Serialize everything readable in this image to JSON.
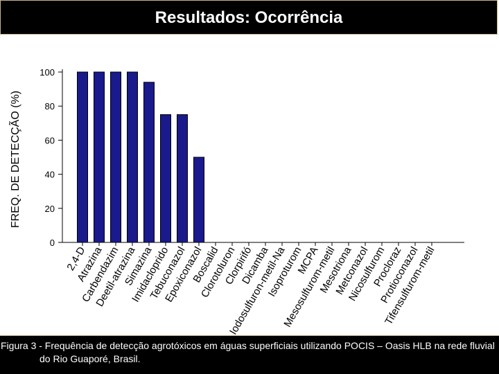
{
  "slide": {
    "title": "Resultados: Ocorrência",
    "caption": "Figura 3 - Frequência de detecção agrotóxicos em águas superficiais utilizando POCIS – Oasis HLB na rede fluvial do Rio Guaporé, Brasil."
  },
  "chart_data": {
    "type": "bar",
    "title": "",
    "xlabel": "",
    "ylabel": "FREQ. DE DETECÇÃO (%)",
    "ylim": [
      0,
      100
    ],
    "yticks": [
      0,
      20,
      40,
      60,
      80,
      100
    ],
    "grid": false,
    "bar_color": "#1a1a8c",
    "categories": [
      "2,4-D",
      "Atrazina",
      "Carbendazim",
      "Deetil-atrazina",
      "Simazina",
      "Imidacloprido",
      "Tebuconazol",
      "Epoxiconazol",
      "Boscalid",
      "Clorotoluron",
      "Clorpirifó",
      "Dicamba",
      "Iodosulfuron-metil-Na",
      "Isoproturom",
      "MCPA",
      "Mesosulfurom-metil",
      "Mesotriona",
      "Metconazol",
      "Nicosulfurom",
      "Procloraz",
      "Protioconazol",
      "Tifensulfurom-metil"
    ],
    "values": [
      100,
      100,
      100,
      100,
      94,
      75,
      75,
      50,
      0,
      0,
      0,
      0,
      0,
      0,
      0,
      0,
      0,
      0,
      0,
      0,
      0,
      0
    ]
  }
}
